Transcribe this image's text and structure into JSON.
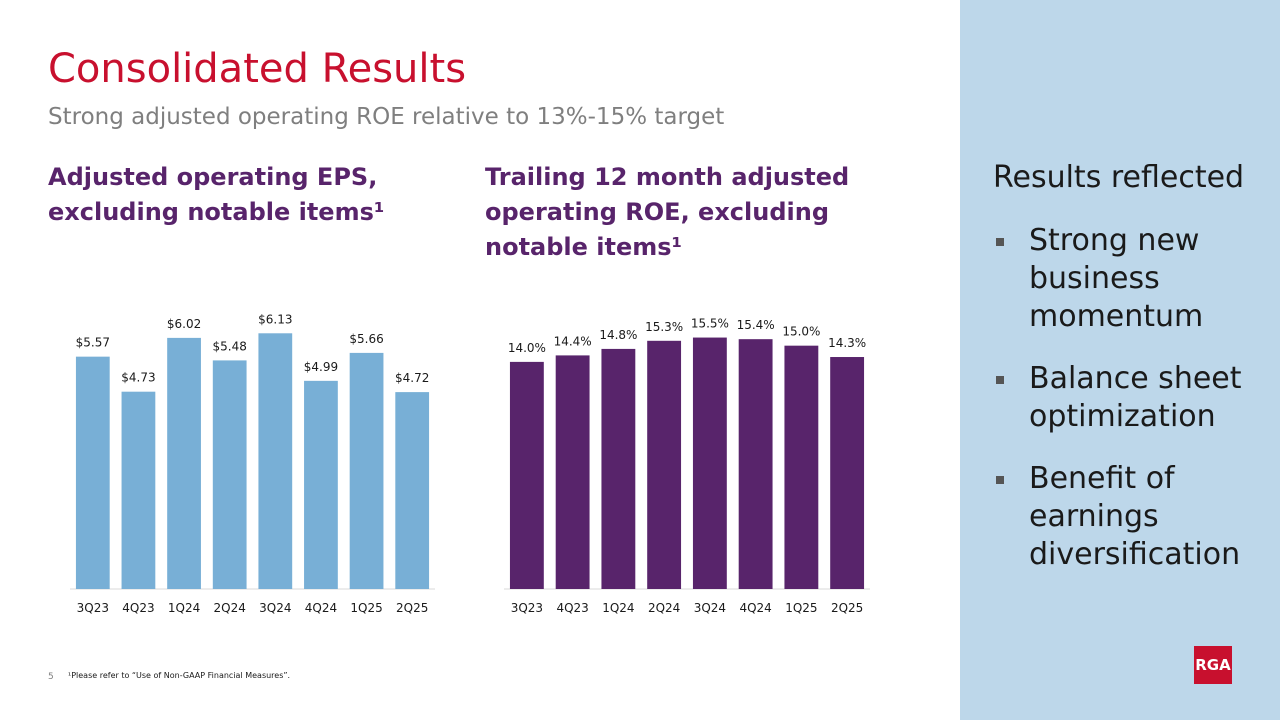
{
  "header": {
    "title": "Consolidated Results",
    "subtitle": "Strong adjusted operating ROE relative to 13%-15% target"
  },
  "chart_data": [
    {
      "type": "bar",
      "title": "Adjusted operating EPS, excluding notable items¹",
      "categories": [
        "3Q23",
        "4Q23",
        "1Q24",
        "2Q24",
        "3Q24",
        "4Q24",
        "1Q25",
        "2Q25"
      ],
      "values": [
        5.57,
        4.73,
        6.02,
        5.48,
        6.13,
        4.99,
        5.66,
        4.72
      ],
      "value_labels": [
        "$5.57",
        "$4.73",
        "$6.02",
        "$5.48",
        "$6.13",
        "$4.99",
        "$5.66",
        "$4.72"
      ],
      "color": "#78afd6",
      "ylim": [
        0,
        7
      ]
    },
    {
      "type": "bar",
      "title": "Trailing 12 month adjusted operating ROE, excluding notable items¹",
      "categories": [
        "3Q23",
        "4Q23",
        "1Q24",
        "2Q24",
        "3Q24",
        "4Q24",
        "1Q25",
        "2Q25"
      ],
      "values": [
        14.0,
        14.4,
        14.8,
        15.3,
        15.5,
        15.4,
        15.0,
        14.3
      ],
      "value_labels": [
        "14.0%",
        "14.4%",
        "14.8%",
        "15.3%",
        "15.5%",
        "15.4%",
        "15.0%",
        "14.3%"
      ],
      "color": "#58246b",
      "ylim": [
        0,
        18
      ]
    }
  ],
  "sidebar": {
    "heading": "Results reflected",
    "bullets": [
      "Strong new business momentum",
      "Balance sheet optimization",
      "Benefit of earnings diversification"
    ]
  },
  "footer": {
    "page_number": "5",
    "footnote": "¹Please refer to “Use of Non-GAAP Financial Measures”."
  },
  "logo": "RGA"
}
